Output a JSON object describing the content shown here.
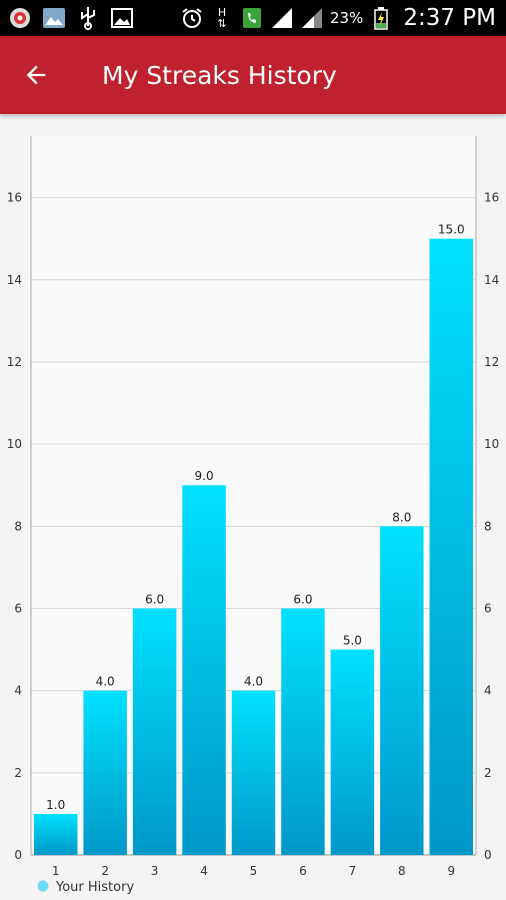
{
  "status_bar": {
    "time": "2:37 PM",
    "battery": "23%",
    "network": "H",
    "icons": [
      "notification-icon",
      "gallery-icon",
      "usb-icon",
      "image-icon",
      "alarm-icon",
      "network-h-icon",
      "phone-icon",
      "signal-icon",
      "signal-icon-2",
      "battery-icon"
    ]
  },
  "app_bar": {
    "title": "My Streaks History",
    "back_icon": "arrow-back-icon",
    "color": "#c0212f"
  },
  "chart_data": {
    "type": "bar",
    "categories": [
      "1",
      "2",
      "3",
      "4",
      "5",
      "6",
      "7",
      "8",
      "9"
    ],
    "series": [
      {
        "name": "Your History",
        "values": [
          1.0,
          4.0,
          6.0,
          9.0,
          4.0,
          6.0,
          5.0,
          8.0,
          15.0
        ]
      }
    ],
    "value_labels": [
      "1.0",
      "4.0",
      "6.0",
      "9.0",
      "4.0",
      "6.0",
      "5.0",
      "8.0",
      "15.0"
    ],
    "y_ticks": [
      0,
      2,
      4,
      6,
      8,
      10,
      12,
      14,
      16
    ],
    "ylim": [
      0,
      17.5
    ],
    "grid": true,
    "dual_y_axis": true,
    "legend_position": "bottom-left",
    "bar_color_top": "#00e1ff",
    "bar_color_bottom": "#0098c8"
  }
}
